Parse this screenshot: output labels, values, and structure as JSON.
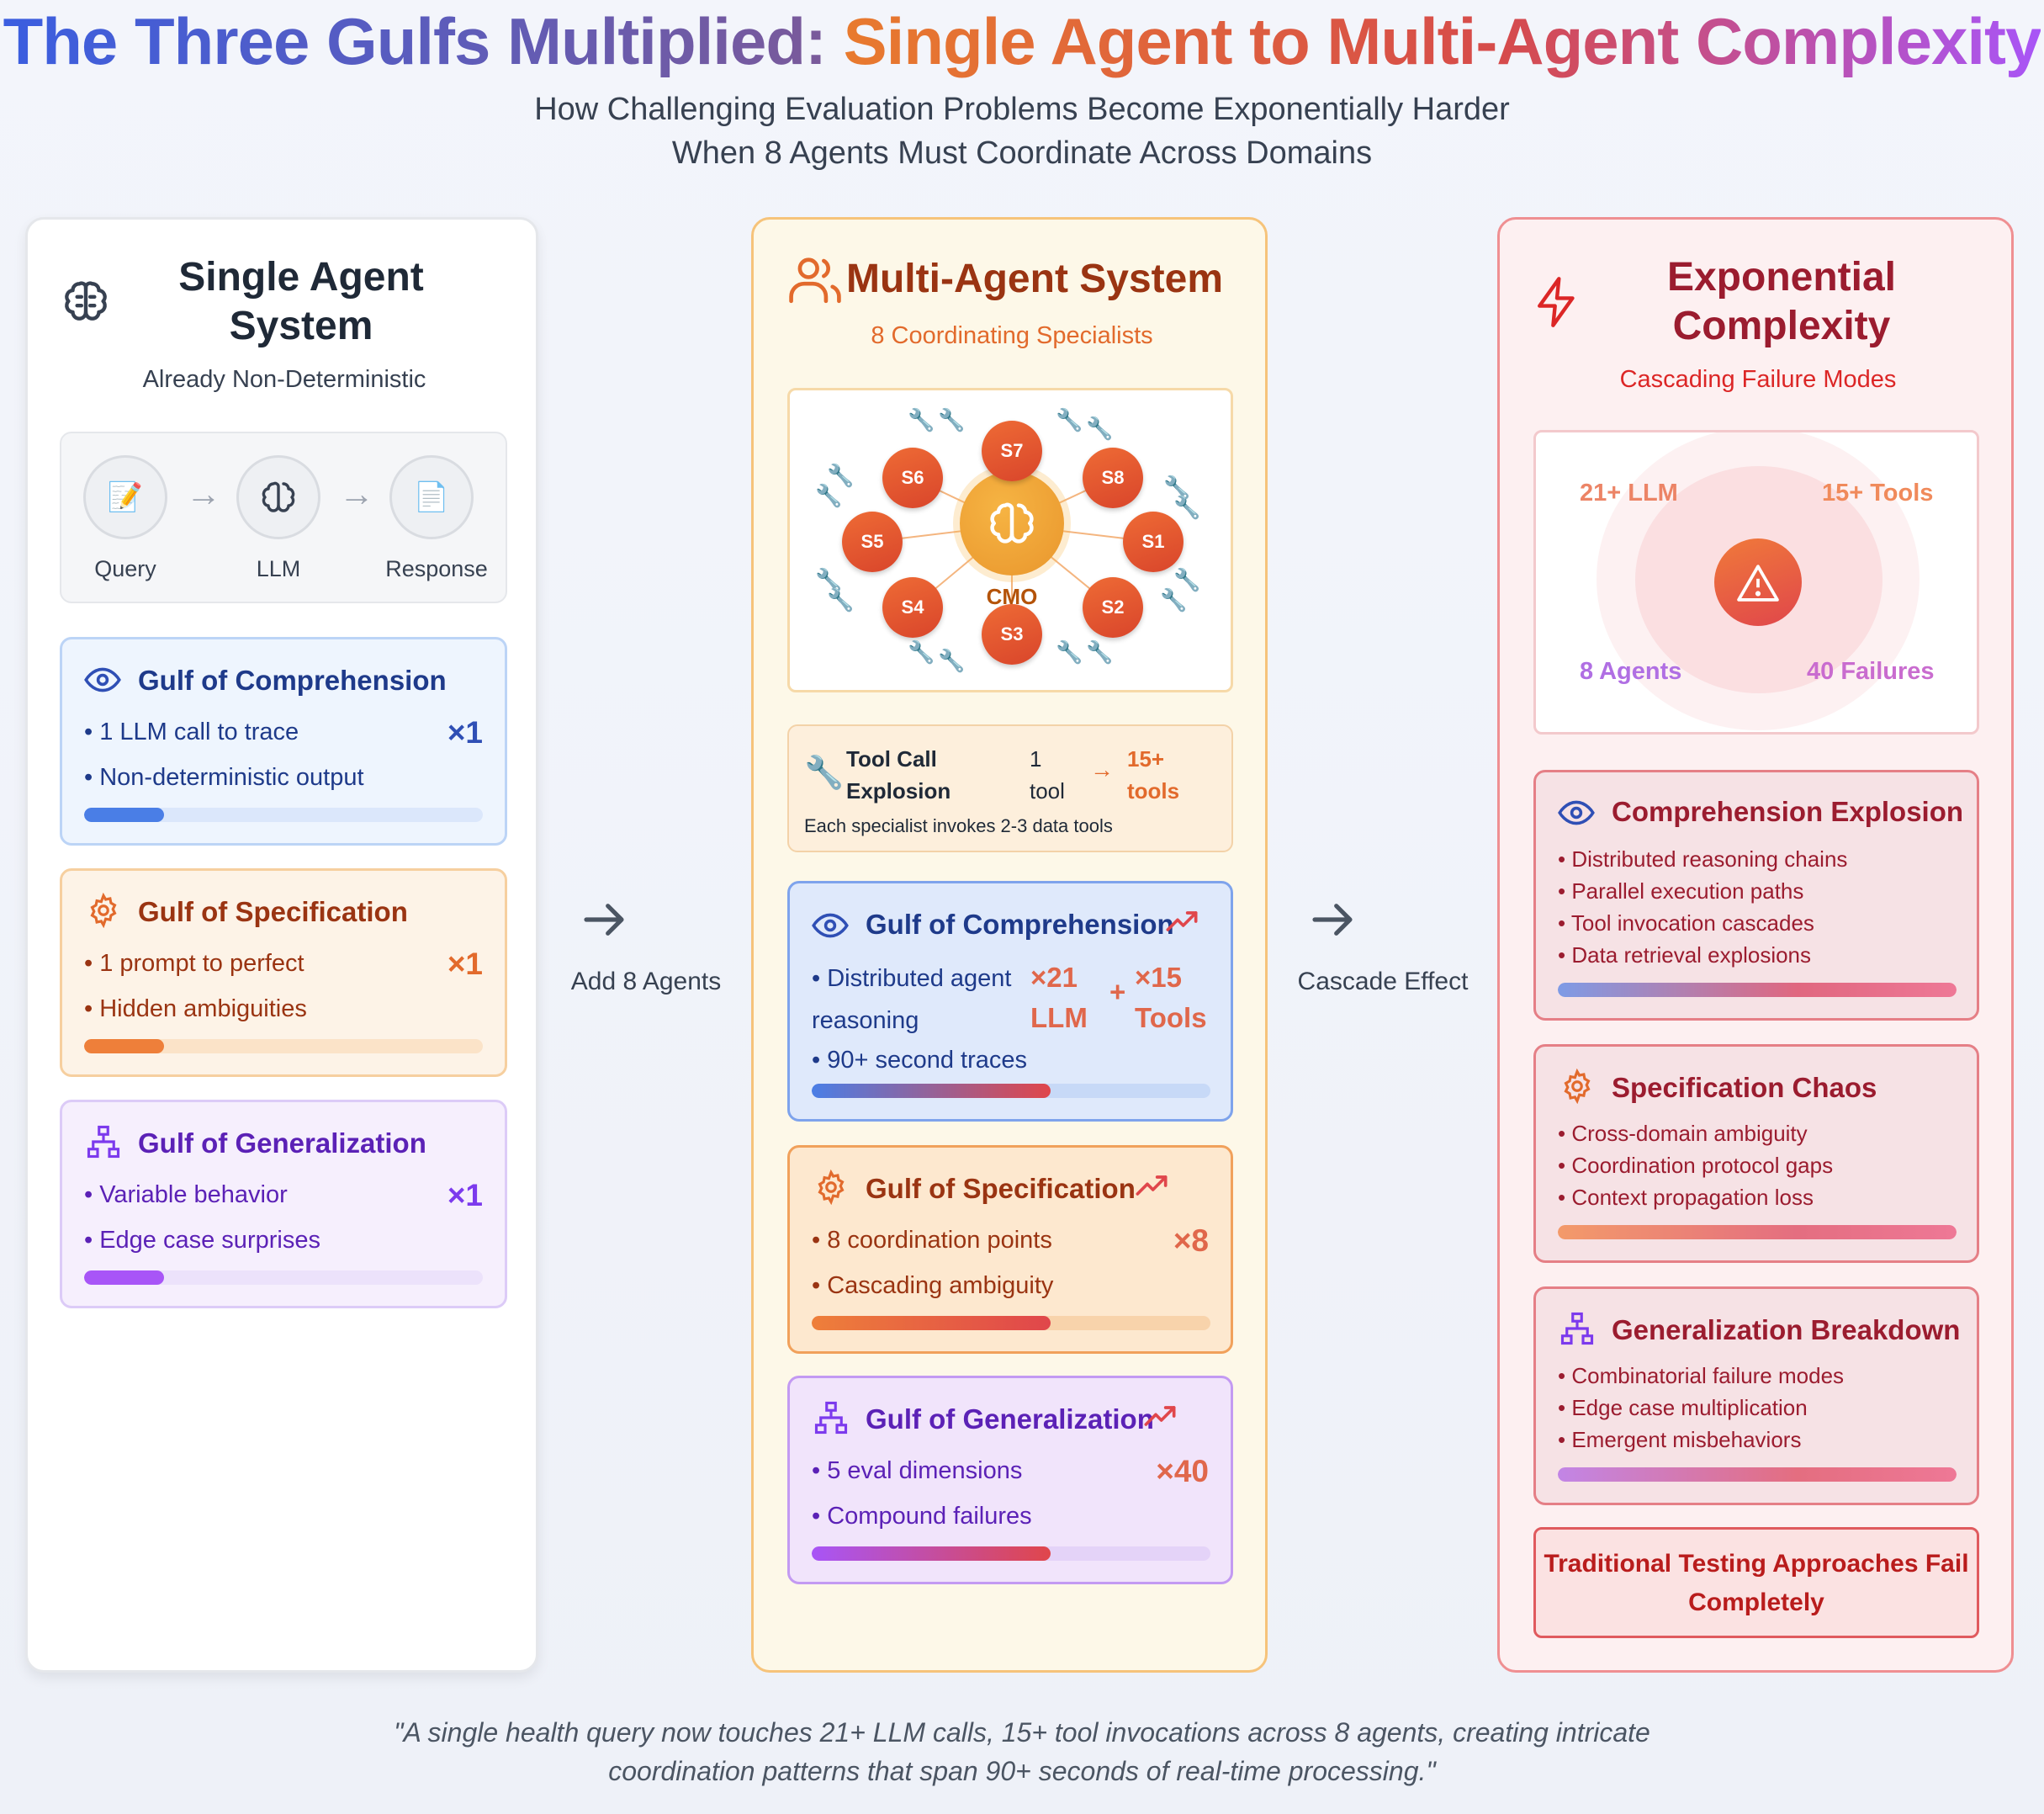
{
  "title": {
    "part1": "The Three Gulfs Multiplied:",
    "part2": "Single Agent to Multi-Agent Complexity"
  },
  "subtitle": {
    "line1": "How Challenging Evaluation Problems Become Exponentially Harder",
    "line2": "When 8 Agents Must Coordinate Across Domains"
  },
  "single": {
    "title_line1": "Single Agent",
    "title_line2": "System",
    "subtitle": "Already Non-Deterministic",
    "flow": {
      "query": "Query",
      "llm": "LLM",
      "response": "Response"
    },
    "gulfs": [
      {
        "title": "Gulf of Comprehension",
        "items": [
          "• 1 LLM call to trace",
          "• Non-deterministic output"
        ],
        "mult": "×1",
        "progress": 0.2
      },
      {
        "title": "Gulf of Specification",
        "items": [
          "• 1 prompt to perfect",
          "• Hidden ambiguities"
        ],
        "mult": "×1",
        "progress": 0.2
      },
      {
        "title": "Gulf of Generalization",
        "items": [
          "• Variable behavior",
          "• Edge case surprises"
        ],
        "mult": "×1",
        "progress": 0.2
      }
    ]
  },
  "transitions": {
    "left": "Add 8 Agents",
    "right": "Cascade Effect"
  },
  "multi": {
    "title": "Multi-Agent System",
    "subtitle": "8 Coordinating Specialists",
    "network": {
      "center": "CMO",
      "nodes": [
        "S1",
        "S2",
        "S3",
        "S4",
        "S5",
        "S6",
        "S7",
        "S8"
      ]
    },
    "tool_call": {
      "title_line1": "Tool Call",
      "title_line2": "Explosion",
      "from_line1": "1",
      "from_line2": "tool",
      "to_line1": "15+",
      "to_line2": "tools",
      "note": "Each specialist invokes 2-3 data tools"
    },
    "gulfs": {
      "comprehension": {
        "title": "Gulf of Comprehension",
        "item1_line1": "• Distributed agent",
        "item1_line2": "reasoning",
        "item2": "• 90+ second traces",
        "mult1_line1": "×21",
        "mult1_line2": "LLM",
        "plus": "+",
        "mult2_line1": "×15",
        "mult2_line2": "Tools",
        "progress": 0.6
      },
      "specification": {
        "title": "Gulf of Specification",
        "items": [
          "• 8 coordination points",
          "• Cascading ambiguity"
        ],
        "mult": "×8",
        "progress": 0.6
      },
      "generalization": {
        "title": "Gulf of Generalization",
        "items": [
          "• 5 eval dimensions",
          "• Compound failures"
        ],
        "mult": "×40",
        "progress": 0.6
      }
    }
  },
  "exponential": {
    "title_line1": "Exponential",
    "title_line2": "Complexity",
    "subtitle": "Cascading Failure Modes",
    "risk": {
      "tl": "21+ LLM",
      "tr": "15+ Tools",
      "bl": "8 Agents",
      "br": "40 Failures"
    },
    "sections": [
      {
        "title": "Comprehension Explosion",
        "items": [
          "• Distributed reasoning chains",
          "• Parallel execution paths",
          "• Tool invocation cascades",
          "• Data retrieval explosions"
        ]
      },
      {
        "title": "Specification Chaos",
        "items": [
          "• Cross-domain ambiguity",
          "• Coordination protocol gaps",
          "• Context propagation loss"
        ]
      },
      {
        "title": "Generalization Breakdown",
        "items": [
          "• Combinatorial failure modes",
          "• Edge case multiplication",
          "• Emergent misbehaviors"
        ]
      }
    ],
    "fail_line1": "Traditional Testing Approaches Fail",
    "fail_line2": "Completely"
  },
  "quote": {
    "line1": "\"A single health query now touches 21+ LLM calls, 15+ tool invocations across 8 agents, creating intricate",
    "line2": "coordination patterns that span 90+ seconds of real-time processing.\""
  },
  "colors": {
    "blue": "#2f4fb5",
    "orange": "#e26a2c",
    "purple": "#7c3aed",
    "red": "#b91c1c",
    "brown": "#9a3412"
  }
}
